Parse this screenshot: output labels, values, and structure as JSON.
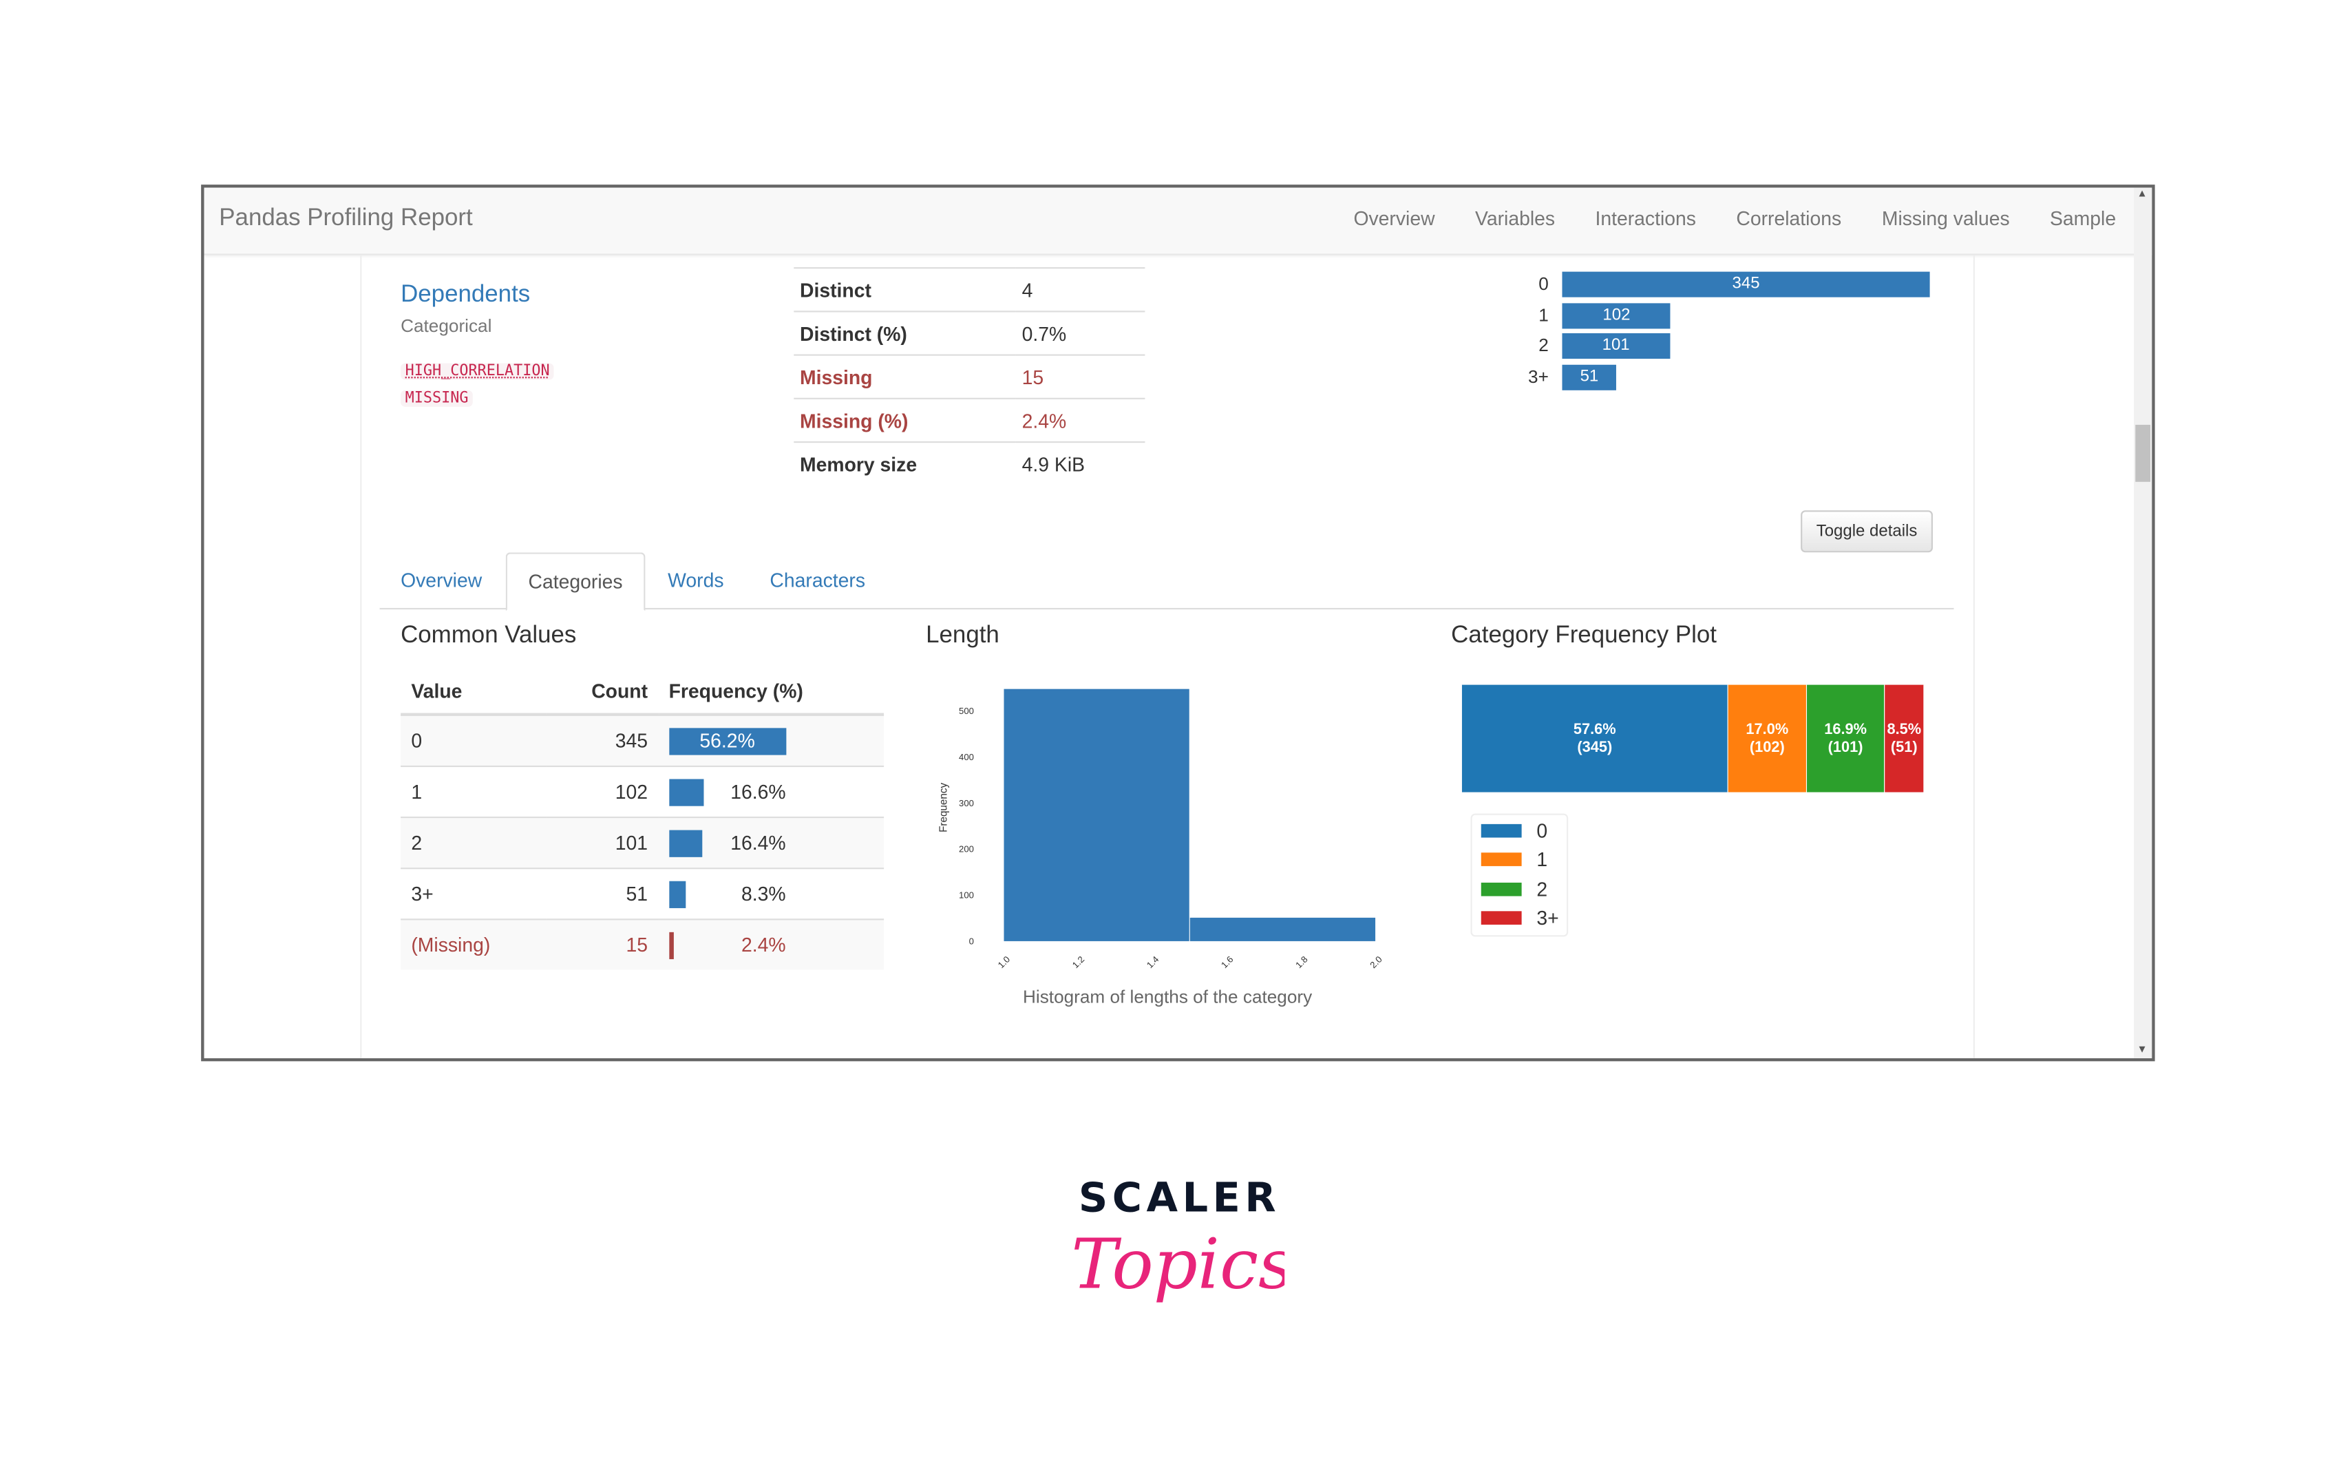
{
  "navbar": {
    "brand": "Pandas Profiling Report",
    "items": [
      "Overview",
      "Variables",
      "Interactions",
      "Correlations",
      "Missing values",
      "Sample"
    ]
  },
  "variable": {
    "name": "Dependents",
    "type": "Categorical",
    "badges": [
      "HIGH_CORRELATION",
      "MISSING"
    ]
  },
  "stats": [
    {
      "label": "Distinct",
      "value": "4",
      "warn": false
    },
    {
      "label": "Distinct (%)",
      "value": "0.7%",
      "warn": false
    },
    {
      "label": "Missing",
      "value": "15",
      "warn": true
    },
    {
      "label": "Missing (%)",
      "value": "2.4%",
      "warn": true
    },
    {
      "label": "Memory size",
      "value": "4.9 KiB",
      "warn": false
    }
  ],
  "mini_bars": [
    {
      "label": "0",
      "count": 345
    },
    {
      "label": "1",
      "count": 102
    },
    {
      "label": "2",
      "count": 101
    },
    {
      "label": "3+",
      "count": 51
    }
  ],
  "toggle_label": "Toggle details",
  "tabs": [
    {
      "label": "Overview",
      "active": false
    },
    {
      "label": "Categories",
      "active": true
    },
    {
      "label": "Words",
      "active": false
    },
    {
      "label": "Characters",
      "active": false
    }
  ],
  "common_values": {
    "title": "Common Values",
    "headers": [
      "Value",
      "Count",
      "Frequency (%)"
    ],
    "rows": [
      {
        "value": "0",
        "count": "345",
        "freq": "56.2%",
        "pct": 56.2
      },
      {
        "value": "1",
        "count": "102",
        "freq": "16.6%",
        "pct": 16.6
      },
      {
        "value": "2",
        "count": "101",
        "freq": "16.4%",
        "pct": 16.4
      },
      {
        "value": "3+",
        "count": "51",
        "freq": "8.3%",
        "pct": 8.3
      },
      {
        "value": "(Missing)",
        "count": "15",
        "freq": "2.4%",
        "pct": 2.4,
        "missing": true
      }
    ]
  },
  "chart_data": [
    {
      "type": "bar",
      "title": "Length",
      "xlabel": "Histogram of lengths of the category",
      "ylabel": "Frequency",
      "bins": [
        [
          1.0,
          1.5
        ],
        [
          1.5,
          2.0
        ]
      ],
      "values": [
        548,
        51
      ],
      "xticks": [
        "1.0",
        "1.2",
        "1.4",
        "1.6",
        "1.8",
        "2.0"
      ],
      "yticks": [
        "0",
        "100",
        "200",
        "300",
        "400",
        "500"
      ],
      "xlim": [
        1.0,
        2.0
      ],
      "ylim": [
        0,
        548
      ],
      "color": "#337ab7",
      "grid": false
    },
    {
      "type": "bar",
      "title": "Category Frequency Plot",
      "stacked": true,
      "legend": "bottom-left",
      "categories": [
        "0",
        "1",
        "2",
        "3+"
      ],
      "values": [
        345,
        102,
        101,
        51
      ],
      "labels": [
        "57.6%",
        "17.0%",
        "16.9%",
        "8.5%"
      ],
      "colors": [
        "#1f77b4",
        "#ff7f0e",
        "#2ca02c",
        "#d62728"
      ]
    }
  ],
  "logo": {
    "text_top": "SCALER",
    "text_bottom": "Topics",
    "color_top": "#0d1628",
    "color_bottom": "#e8247a"
  }
}
